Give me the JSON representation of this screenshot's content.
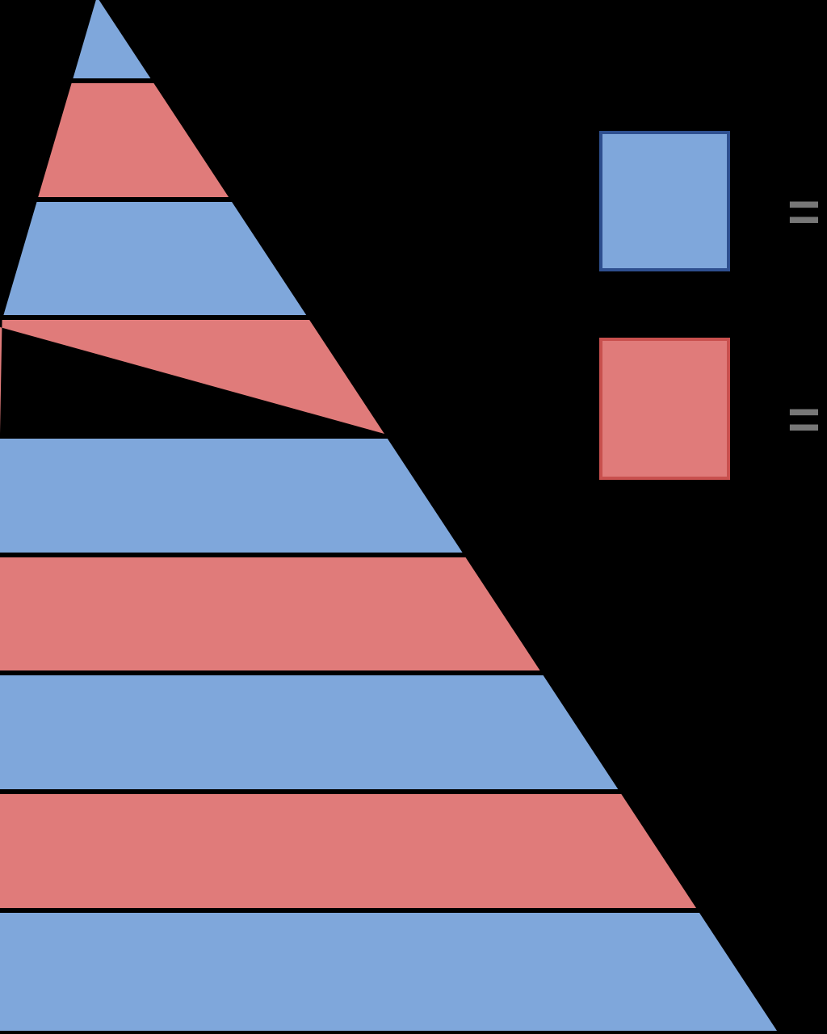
{
  "colors": {
    "background": "#000000",
    "blue": "#7FA7DB",
    "red": "#E07B7A",
    "blue_border": "#2E4F8F",
    "red_border": "#C9504E",
    "separator": "#000000",
    "equals_mark": "#777777"
  },
  "pyramid": {
    "stripe_count": 9,
    "stripe_pattern": [
      "blue",
      "red",
      "blue",
      "red",
      "blue",
      "red",
      "blue",
      "red",
      "blue"
    ],
    "stripes": [
      {
        "color": "blue"
      },
      {
        "color": "red"
      },
      {
        "color": "blue"
      },
      {
        "color": "red"
      },
      {
        "color": "blue"
      },
      {
        "color": "red"
      },
      {
        "color": "blue"
      },
      {
        "color": "red"
      },
      {
        "color": "blue"
      }
    ]
  },
  "legend": {
    "items": [
      {
        "color": "blue",
        "symbol": "="
      },
      {
        "color": "red",
        "symbol": "="
      }
    ]
  }
}
